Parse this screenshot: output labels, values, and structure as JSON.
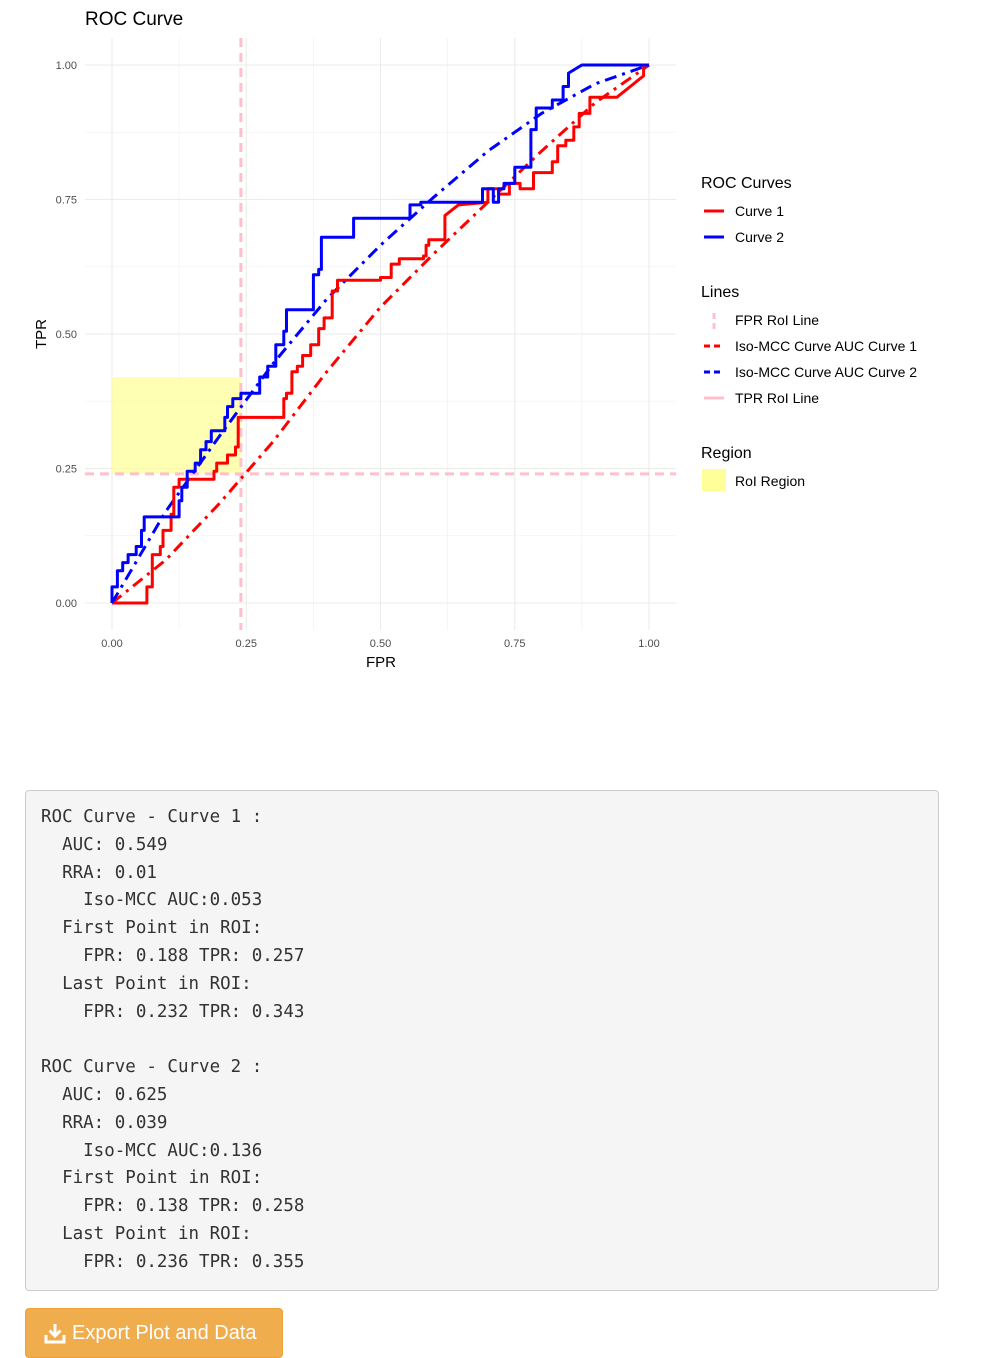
{
  "chart_data": {
    "type": "line",
    "title": "ROC Curve",
    "xlabel": "FPR",
    "ylabel": "TPR",
    "xlim": [
      0,
      1
    ],
    "ylim": [
      0,
      1
    ],
    "x_ticks": [
      "0.00",
      "0.25",
      "0.50",
      "0.75",
      "1.00"
    ],
    "y_ticks": [
      "0.00",
      "0.25",
      "0.50",
      "0.75",
      "1.00"
    ],
    "grid": true,
    "legend_position": "right",
    "series": [
      {
        "name": "Curve 1",
        "color": "#ff0000",
        "style": "solid",
        "points": [
          [
            0,
            0
          ],
          [
            0.065,
            0
          ],
          [
            0.065,
            0.03
          ],
          [
            0.075,
            0.03
          ],
          [
            0.075,
            0.09
          ],
          [
            0.09,
            0.09
          ],
          [
            0.09,
            0.105
          ],
          [
            0.095,
            0.105
          ],
          [
            0.095,
            0.135
          ],
          [
            0.11,
            0.135
          ],
          [
            0.11,
            0.165
          ],
          [
            0.115,
            0.165
          ],
          [
            0.115,
            0.215
          ],
          [
            0.125,
            0.215
          ],
          [
            0.125,
            0.23
          ],
          [
            0.19,
            0.23
          ],
          [
            0.19,
            0.245
          ],
          [
            0.195,
            0.245
          ],
          [
            0.195,
            0.26
          ],
          [
            0.215,
            0.26
          ],
          [
            0.215,
            0.275
          ],
          [
            0.23,
            0.275
          ],
          [
            0.23,
            0.29
          ],
          [
            0.235,
            0.29
          ],
          [
            0.235,
            0.345
          ],
          [
            0.32,
            0.345
          ],
          [
            0.32,
            0.38
          ],
          [
            0.325,
            0.38
          ],
          [
            0.325,
            0.39
          ],
          [
            0.335,
            0.39
          ],
          [
            0.335,
            0.43
          ],
          [
            0.345,
            0.43
          ],
          [
            0.345,
            0.44
          ],
          [
            0.355,
            0.44
          ],
          [
            0.355,
            0.46
          ],
          [
            0.37,
            0.46
          ],
          [
            0.37,
            0.48
          ],
          [
            0.385,
            0.48
          ],
          [
            0.385,
            0.51
          ],
          [
            0.395,
            0.51
          ],
          [
            0.395,
            0.53
          ],
          [
            0.41,
            0.53
          ],
          [
            0.41,
            0.58
          ],
          [
            0.42,
            0.58
          ],
          [
            0.42,
            0.6
          ],
          [
            0.5,
            0.6
          ],
          [
            0.5,
            0.605
          ],
          [
            0.52,
            0.605
          ],
          [
            0.52,
            0.63
          ],
          [
            0.535,
            0.63
          ],
          [
            0.535,
            0.64
          ],
          [
            0.58,
            0.64
          ],
          [
            0.58,
            0.645
          ],
          [
            0.585,
            0.645
          ],
          [
            0.585,
            0.665
          ],
          [
            0.59,
            0.665
          ],
          [
            0.59,
            0.675
          ],
          [
            0.62,
            0.675
          ],
          [
            0.62,
            0.72
          ],
          [
            0.645,
            0.74
          ],
          [
            0.7,
            0.745
          ],
          [
            0.7,
            0.77
          ],
          [
            0.72,
            0.77
          ],
          [
            0.72,
            0.76
          ],
          [
            0.74,
            0.76
          ],
          [
            0.74,
            0.78
          ],
          [
            0.76,
            0.78
          ],
          [
            0.76,
            0.77
          ],
          [
            0.785,
            0.77
          ],
          [
            0.785,
            0.8
          ],
          [
            0.82,
            0.8
          ],
          [
            0.82,
            0.82
          ],
          [
            0.83,
            0.82
          ],
          [
            0.83,
            0.85
          ],
          [
            0.845,
            0.85
          ],
          [
            0.845,
            0.86
          ],
          [
            0.86,
            0.86
          ],
          [
            0.86,
            0.885
          ],
          [
            0.87,
            0.885
          ],
          [
            0.87,
            0.91
          ],
          [
            0.89,
            0.91
          ],
          [
            0.89,
            0.94
          ],
          [
            0.94,
            0.94
          ],
          [
            0.99,
            0.98
          ],
          [
            0.99,
            1.0
          ],
          [
            1.0,
            1.0
          ]
        ]
      },
      {
        "name": "Curve 2",
        "color": "#0000ff",
        "style": "solid",
        "points": [
          [
            0,
            0
          ],
          [
            0,
            0.03
          ],
          [
            0.01,
            0.03
          ],
          [
            0.01,
            0.06
          ],
          [
            0.02,
            0.06
          ],
          [
            0.02,
            0.075
          ],
          [
            0.03,
            0.075
          ],
          [
            0.03,
            0.09
          ],
          [
            0.045,
            0.09
          ],
          [
            0.045,
            0.105
          ],
          [
            0.055,
            0.105
          ],
          [
            0.055,
            0.135
          ],
          [
            0.06,
            0.135
          ],
          [
            0.06,
            0.16
          ],
          [
            0.125,
            0.16
          ],
          [
            0.125,
            0.19
          ],
          [
            0.13,
            0.19
          ],
          [
            0.13,
            0.215
          ],
          [
            0.14,
            0.215
          ],
          [
            0.14,
            0.245
          ],
          [
            0.155,
            0.245
          ],
          [
            0.155,
            0.26
          ],
          [
            0.165,
            0.26
          ],
          [
            0.165,
            0.285
          ],
          [
            0.175,
            0.285
          ],
          [
            0.175,
            0.3
          ],
          [
            0.185,
            0.3
          ],
          [
            0.185,
            0.32
          ],
          [
            0.21,
            0.32
          ],
          [
            0.21,
            0.345
          ],
          [
            0.215,
            0.345
          ],
          [
            0.215,
            0.365
          ],
          [
            0.225,
            0.365
          ],
          [
            0.225,
            0.38
          ],
          [
            0.24,
            0.38
          ],
          [
            0.24,
            0.39
          ],
          [
            0.275,
            0.39
          ],
          [
            0.275,
            0.42
          ],
          [
            0.29,
            0.42
          ],
          [
            0.29,
            0.44
          ],
          [
            0.305,
            0.44
          ],
          [
            0.305,
            0.48
          ],
          [
            0.32,
            0.48
          ],
          [
            0.32,
            0.505
          ],
          [
            0.325,
            0.505
          ],
          [
            0.325,
            0.545
          ],
          [
            0.375,
            0.545
          ],
          [
            0.375,
            0.61
          ],
          [
            0.385,
            0.61
          ],
          [
            0.385,
            0.62
          ],
          [
            0.39,
            0.62
          ],
          [
            0.39,
            0.68
          ],
          [
            0.45,
            0.68
          ],
          [
            0.45,
            0.715
          ],
          [
            0.555,
            0.715
          ],
          [
            0.555,
            0.74
          ],
          [
            0.575,
            0.74
          ],
          [
            0.575,
            0.745
          ],
          [
            0.69,
            0.745
          ],
          [
            0.69,
            0.77
          ],
          [
            0.71,
            0.77
          ],
          [
            0.71,
            0.745
          ],
          [
            0.72,
            0.745
          ],
          [
            0.72,
            0.77
          ],
          [
            0.73,
            0.77
          ],
          [
            0.73,
            0.78
          ],
          [
            0.75,
            0.78
          ],
          [
            0.75,
            0.81
          ],
          [
            0.78,
            0.81
          ],
          [
            0.78,
            0.88
          ],
          [
            0.79,
            0.88
          ],
          [
            0.79,
            0.92
          ],
          [
            0.82,
            0.92
          ],
          [
            0.82,
            0.935
          ],
          [
            0.84,
            0.935
          ],
          [
            0.84,
            0.96
          ],
          [
            0.85,
            0.96
          ],
          [
            0.85,
            0.985
          ],
          [
            0.875,
            1.0
          ],
          [
            1.0,
            1.0
          ]
        ]
      },
      {
        "name": "Iso-MCC Curve AUC Curve 1",
        "color": "#ff0000",
        "style": "dashed",
        "points": [
          [
            0,
            0
          ],
          [
            0.1,
            0.08
          ],
          [
            0.2,
            0.185
          ],
          [
            0.3,
            0.3
          ],
          [
            0.4,
            0.43
          ],
          [
            0.5,
            0.55
          ],
          [
            0.6,
            0.65
          ],
          [
            0.7,
            0.745
          ],
          [
            0.8,
            0.84
          ],
          [
            0.9,
            0.93
          ],
          [
            1.0,
            1.0
          ]
        ]
      },
      {
        "name": "Iso-MCC Curve AUC Curve 2",
        "color": "#0000ff",
        "style": "dashed",
        "points": [
          [
            0,
            0
          ],
          [
            0.1,
            0.17
          ],
          [
            0.2,
            0.31
          ],
          [
            0.3,
            0.445
          ],
          [
            0.4,
            0.565
          ],
          [
            0.5,
            0.665
          ],
          [
            0.6,
            0.755
          ],
          [
            0.7,
            0.84
          ],
          [
            0.8,
            0.91
          ],
          [
            0.9,
            0.965
          ],
          [
            1.0,
            1.0
          ]
        ]
      }
    ],
    "reference_lines": [
      {
        "name": "FPR RoI Line",
        "orientation": "vertical",
        "value": 0.24,
        "color": "#ffc0cb",
        "style": "dashed"
      },
      {
        "name": "TPR RoI Line",
        "orientation": "horizontal",
        "value": 0.24,
        "color": "#ffc0cb",
        "style": "dashed"
      }
    ],
    "regions": [
      {
        "name": "RoI Region",
        "color": "#ffff99",
        "x_range": [
          0.0,
          0.24
        ],
        "y_range": [
          0.24,
          0.42
        ]
      }
    ],
    "legend": {
      "roc_title": "ROC Curves",
      "roc_items": [
        "Curve 1",
        "Curve 2"
      ],
      "lines_title": "Lines",
      "lines_items": [
        "FPR RoI Line",
        "Iso-MCC Curve AUC Curve 1",
        "Iso-MCC Curve AUC Curve 2",
        "TPR RoI Line"
      ],
      "region_title": "Region",
      "region_items": [
        "RoI Region"
      ]
    }
  },
  "stats_text": "ROC Curve - Curve 1 :\n  AUC: 0.549\n  RRA: 0.01\n    Iso-MCC AUC:0.053\n  First Point in ROI:\n    FPR: 0.188 TPR: 0.257\n  Last Point in ROI:\n    FPR: 0.232 TPR: 0.343\n\nROC Curve - Curve 2 :\n  AUC: 0.625\n  RRA: 0.039\n    Iso-MCC AUC:0.136\n  First Point in ROI:\n    FPR: 0.138 TPR: 0.258\n  Last Point in ROI:\n    FPR: 0.236 TPR: 0.355",
  "export_button": {
    "label": "Export Plot and Data",
    "icon": "download-icon",
    "color": "#f0ad4e"
  }
}
